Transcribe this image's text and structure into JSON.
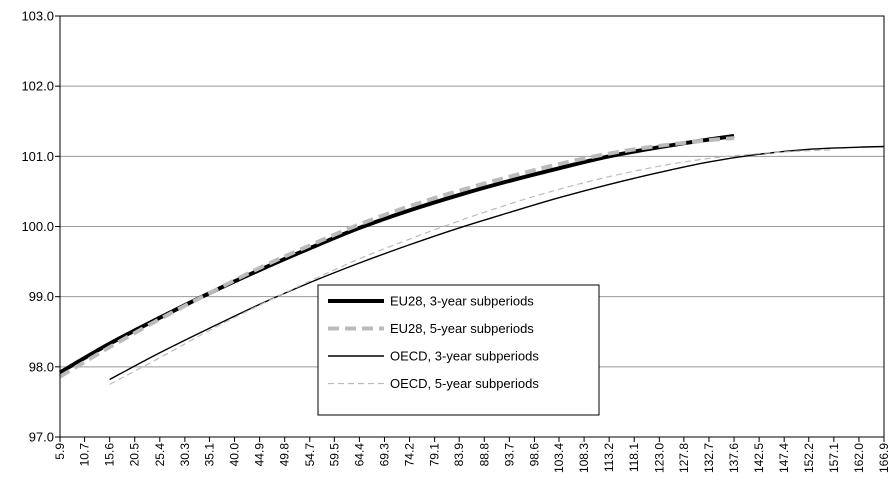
{
  "chart_data": {
    "type": "line",
    "title": "",
    "xlabel": "",
    "ylabel": "",
    "ylim": [
      97.0,
      103.0
    ],
    "yticks": [
      "97.0",
      "98.0",
      "99.0",
      "100.0",
      "101.0",
      "102.0",
      "103.0"
    ],
    "xlim": [
      5.9,
      166.9
    ],
    "xticks": [
      "5.9",
      "10.7",
      "15.6",
      "20.5",
      "25.4",
      "30.3",
      "35.1",
      "40.0",
      "44.9",
      "49.8",
      "54.7",
      "59.5",
      "64.4",
      "69.3",
      "74.2",
      "79.1",
      "83.9",
      "88.8",
      "93.7",
      "98.6",
      "103.4",
      "108.3",
      "113.2",
      "118.1",
      "123.0",
      "127.8",
      "132.7",
      "137.6",
      "142.5",
      "147.4",
      "152.2",
      "157.1",
      "162.0",
      "166.9"
    ],
    "grid": "horizontal",
    "legend_position": "center-bottom",
    "series": [
      {
        "name": "EU28, 3-year subperiods",
        "color": "#000000",
        "style": "solid-thick",
        "x": [
          5.9,
          15.6,
          25.4,
          35.1,
          44.9,
          54.7,
          64.4,
          74.2,
          83.9,
          93.7,
          103.4,
          113.2,
          123.0,
          132.7,
          137.6
        ],
        "y": [
          97.92,
          98.33,
          98.7,
          99.05,
          99.38,
          99.69,
          99.98,
          100.23,
          100.45,
          100.65,
          100.83,
          101.0,
          101.13,
          101.24,
          101.29
        ]
      },
      {
        "name": "EU28, 5-year subperiods",
        "color": "#bbbbbb",
        "style": "dashed-thick",
        "x": [
          5.9,
          15.6,
          25.4,
          35.1,
          44.9,
          54.7,
          64.4,
          74.2,
          83.9,
          93.7,
          103.4,
          113.2,
          123.0,
          132.7,
          137.6
        ],
        "y": [
          97.86,
          98.28,
          98.68,
          99.05,
          99.41,
          99.73,
          100.03,
          100.29,
          100.51,
          100.71,
          100.89,
          101.04,
          101.15,
          101.23,
          101.26
        ]
      },
      {
        "name": "OECD, 3-year subperiods",
        "color": "#000000",
        "style": "solid-thin",
        "x": [
          15.6,
          25.4,
          35.1,
          44.9,
          54.7,
          64.4,
          74.2,
          83.9,
          93.7,
          103.4,
          113.2,
          123.0,
          132.7,
          142.5,
          152.2,
          162.0,
          166.9
        ],
        "y": [
          97.82,
          98.2,
          98.55,
          98.89,
          99.2,
          99.48,
          99.74,
          99.98,
          100.2,
          100.41,
          100.6,
          100.77,
          100.92,
          101.03,
          101.1,
          101.13,
          101.14
        ]
      },
      {
        "name": "OECD, 5-year subperiods",
        "color": "#bbbbbb",
        "style": "dashed-thin",
        "x": [
          15.6,
          25.4,
          35.1,
          44.9,
          54.7,
          64.4,
          74.2,
          83.9,
          93.7,
          103.4,
          113.2,
          123.0,
          132.7,
          142.5,
          152.2,
          157.1
        ],
        "y": [
          97.75,
          98.13,
          98.52,
          98.88,
          99.22,
          99.54,
          99.82,
          100.08,
          100.32,
          100.53,
          100.71,
          100.86,
          100.97,
          101.04,
          101.08,
          101.09
        ]
      }
    ]
  }
}
